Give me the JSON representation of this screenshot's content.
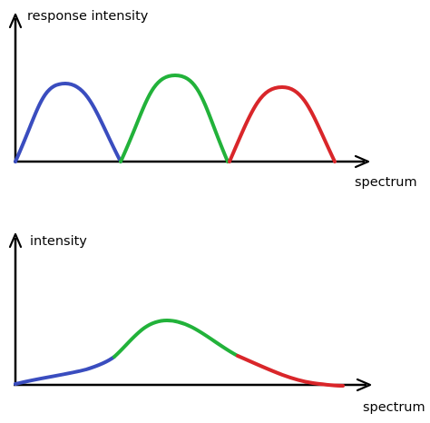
{
  "top_panel": {
    "y_axis_label": "response intensity",
    "x_axis_label": "spectrum",
    "curves": [
      {
        "name": "blue-response-curve",
        "color": "#3a4dbf"
      },
      {
        "name": "green-response-curve",
        "color": "#22b23a"
      },
      {
        "name": "red-response-curve",
        "color": "#d9262a"
      }
    ]
  },
  "bottom_panel": {
    "y_axis_label": "intensity",
    "x_axis_label": "spectrum",
    "segments": [
      {
        "name": "blue-segment",
        "color": "#3a4dbf"
      },
      {
        "name": "green-segment",
        "color": "#22b23a"
      },
      {
        "name": "red-segment",
        "color": "#d9262a"
      }
    ]
  }
}
